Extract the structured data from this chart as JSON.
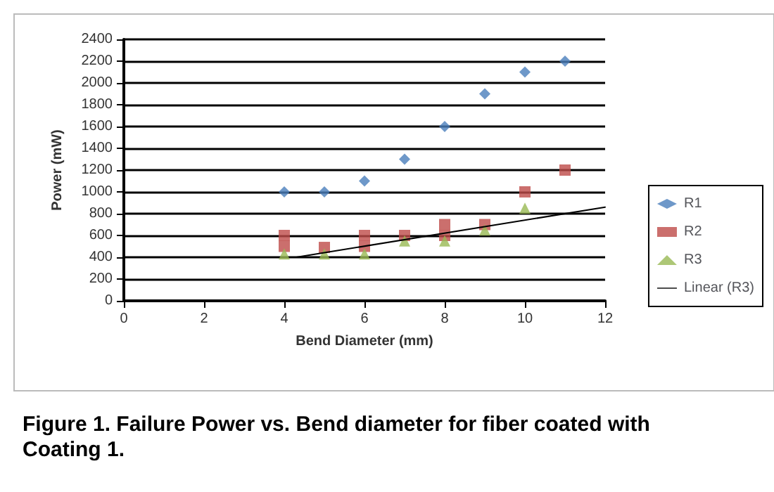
{
  "chart_data": {
    "type": "scatter",
    "xlabel": "Bend Diameter (mm)",
    "ylabel": "Power (mW)",
    "xlim": [
      0,
      12
    ],
    "xticks": [
      0,
      2,
      4,
      6,
      8,
      10,
      12
    ],
    "ylim": [
      0,
      2400
    ],
    "yticks": [
      0,
      200,
      400,
      600,
      800,
      1000,
      1200,
      1400,
      1600,
      1800,
      2000,
      2200,
      2400
    ],
    "grid": "y",
    "legend": "right",
    "series": [
      {
        "name": "R1",
        "color": "#4a7ebb",
        "marker": "diamond",
        "x": [
          4,
          5,
          6,
          7,
          8,
          9,
          10,
          11
        ],
        "values": [
          1000,
          1000,
          1100,
          1300,
          1600,
          1900,
          2100,
          2200
        ]
      },
      {
        "name": "R2",
        "color": "#be4b48",
        "marker": "square",
        "x": [
          4,
          4,
          5,
          6,
          6,
          7,
          8,
          8,
          9,
          10,
          11
        ],
        "values": [
          600,
          500,
          490,
          600,
          500,
          600,
          700,
          600,
          700,
          1000,
          1200
        ]
      },
      {
        "name": "R3",
        "color": "#98b954",
        "marker": "triangle",
        "x": [
          4,
          5,
          6,
          7,
          8,
          9,
          10
        ],
        "values": [
          430,
          430,
          430,
          550,
          550,
          650,
          850
        ]
      },
      {
        "name": "Linear (R3)",
        "type": "line",
        "color": "#000000",
        "marker": "none",
        "x": [
          4.3,
          12
        ],
        "values": [
          400,
          860
        ]
      }
    ],
    "annotations": [
      "Figure 1. Failure Power vs. Bend diameter for fiber coated with Coating 1."
    ]
  }
}
